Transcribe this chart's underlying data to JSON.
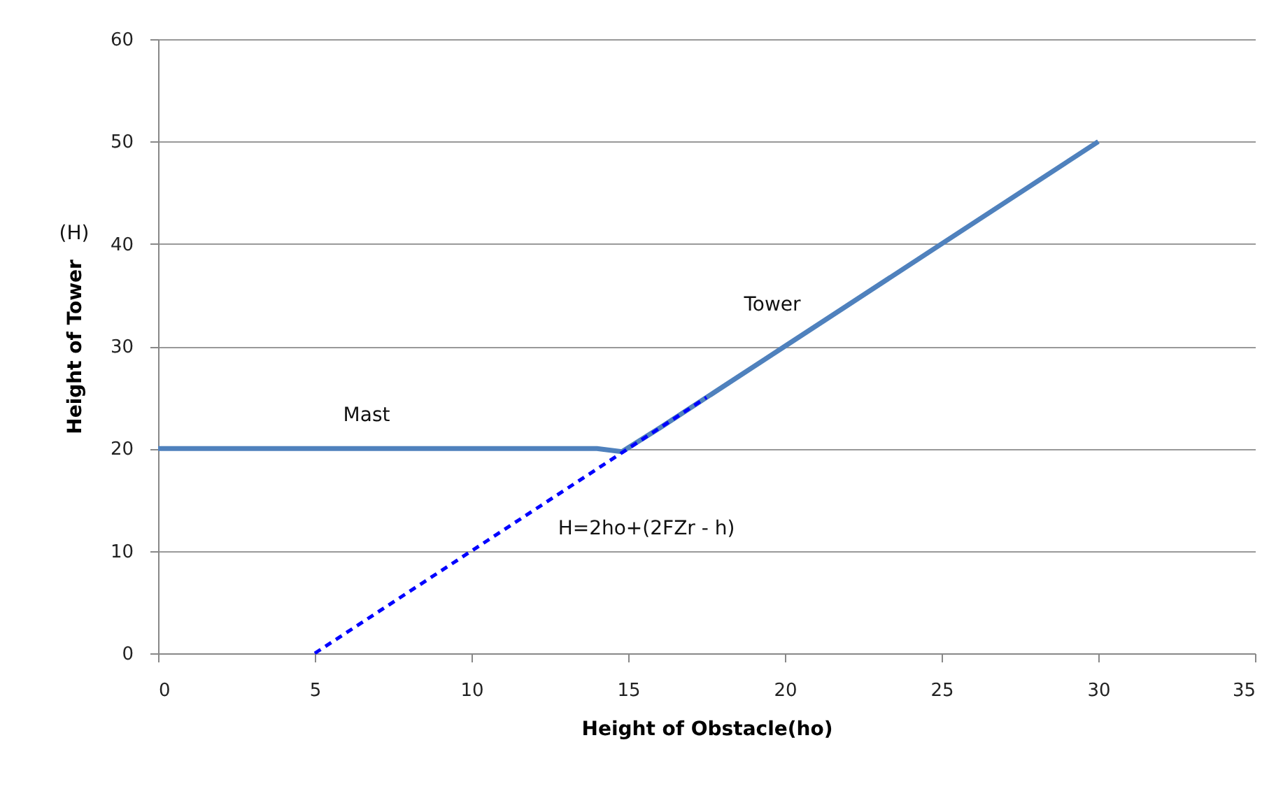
{
  "chart_data": {
    "type": "line",
    "xlabel": "Height of Obstacle(ho)",
    "ylabel": "Height of Tower",
    "xlim": [
      0,
      35
    ],
    "xticks": [
      0,
      5,
      10,
      15,
      20,
      25,
      30,
      35
    ],
    "ylim": [
      0,
      60
    ],
    "yticks": [
      0,
      10,
      20,
      30,
      40,
      50,
      60
    ],
    "grid": "y",
    "marker": "none",
    "series": [
      {
        "color": "#4f81bd",
        "line_style": "solid",
        "x": [
          0,
          14,
          14.8,
          16,
          18,
          20,
          22,
          25,
          27,
          30
        ],
        "values": [
          20,
          20,
          19.7,
          22,
          26,
          30,
          34,
          40,
          44,
          50
        ]
      },
      {
        "color": "#0000ff",
        "line_style": "dashed",
        "x": [
          5,
          17.5
        ],
        "values": [
          0,
          25
        ]
      }
    ],
    "annotations": [
      "(H)",
      "Mast",
      "Tower",
      "H=2ho+(2FZr - h)"
    ]
  }
}
